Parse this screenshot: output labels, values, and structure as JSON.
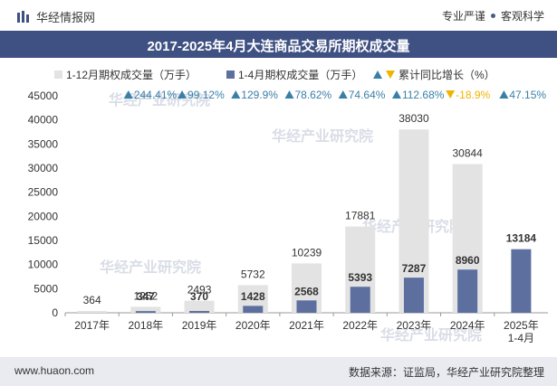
{
  "header": {
    "brand": "华经情报网",
    "tagline_left": "专业严谨",
    "tagline_right": "客观科学"
  },
  "title": "2017-2025年4月大连商品交易所期权成交量",
  "legend": {
    "series1": "1-12月期权成交量（万手）",
    "series2": "1-4月期权成交量（万手）",
    "growth": "累计同比增长（%）"
  },
  "footer": {
    "website": "www.huaon.com",
    "source": "数据来源：证监局，华经产业研究院整理"
  },
  "watermark": "华经产业研究院",
  "colors": {
    "annual": "#e3e3e3",
    "ytd": "#5c6f9e",
    "up": "#3b7fa8",
    "down": "#f0b400",
    "title_bg": "#3f5183"
  },
  "chart_data": {
    "type": "bar",
    "categories": [
      "2017年",
      "2018年",
      "2019年",
      "2020年",
      "2021年",
      "2022年",
      "2023年",
      "2024年",
      "2025年\n1-4月"
    ],
    "series": [
      {
        "name": "1-12月期权成交量（万手）",
        "values": [
          364,
          1252,
          2493,
          5732,
          10239,
          17881,
          38030,
          30844,
          null
        ]
      },
      {
        "name": "1-4月期权成交量（万手）",
        "values": [
          null,
          347,
          370,
          1428,
          2568,
          5393,
          7287,
          8960,
          13184
        ]
      }
    ],
    "growth": {
      "name": "累计同比增长（%）",
      "values": [
        null,
        244.41,
        99.12,
        129.9,
        78.62,
        74.64,
        112.68,
        -18.9,
        47.15
      ],
      "labels": [
        "",
        "244.41%",
        "99.12%",
        "129.9%",
        "78.62%",
        "74.64%",
        "112.68%",
        "-18.9%",
        "47.15%"
      ]
    },
    "ylim": [
      0,
      45000
    ],
    "yticks": [
      0,
      5000,
      10000,
      15000,
      20000,
      25000,
      30000,
      35000,
      40000,
      45000
    ],
    "legend_position": "top"
  }
}
